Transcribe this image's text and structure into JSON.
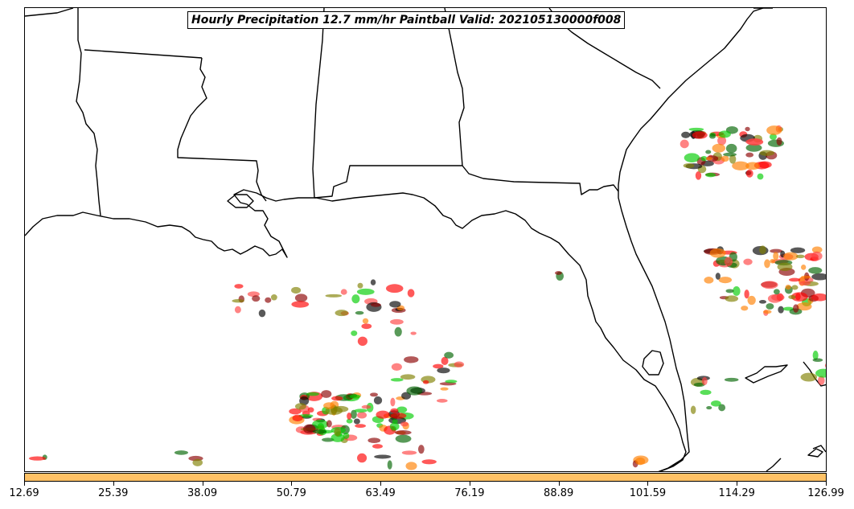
{
  "title": "Hourly Precipitation 12.7 mm/hr Paintball Valid: 202105130000f008",
  "colorbar": {
    "color": "#ffc266",
    "min": 12.69,
    "max": 126.99,
    "ticks": [
      "12.69",
      "25.39",
      "38.09",
      "50.79",
      "63.49",
      "76.19",
      "88.89",
      "101.59",
      "114.29",
      "126.99"
    ]
  },
  "paintball_colors": [
    "#ff0000",
    "#ff7f00",
    "#8b0000",
    "#00cc00",
    "#7f7f00",
    "#006400",
    "#000000",
    "#ff4040"
  ]
}
